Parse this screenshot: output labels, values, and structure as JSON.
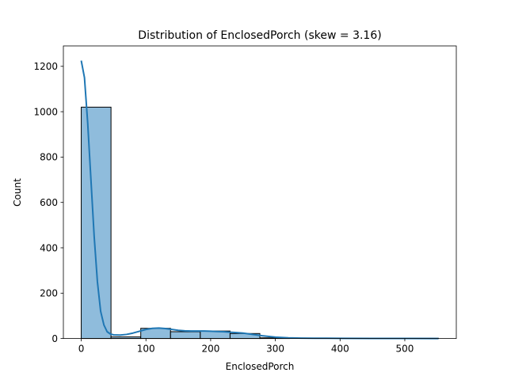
{
  "chart_data": {
    "type": "bar",
    "title": "Distribution of EnclosedPorch (skew = 3.16)",
    "xlabel": "EnclosedPorch",
    "ylabel": "Count",
    "xlim": [
      -27.6,
      579.6
    ],
    "ylim": [
      0,
      1290
    ],
    "xticks": [
      0,
      100,
      200,
      300,
      400,
      500
    ],
    "yticks": [
      0,
      200,
      400,
      600,
      800,
      1000,
      1200
    ],
    "grid": false,
    "legend": "none",
    "bar_color": "#8fbcdc",
    "edge_color": "#000000",
    "kde_color": "#1f77b4",
    "bins": [
      {
        "x0": 0,
        "x1": 46,
        "count": 1020
      },
      {
        "x0": 46,
        "x1": 92,
        "count": 7
      },
      {
        "x0": 92,
        "x1": 138,
        "count": 45
      },
      {
        "x0": 138,
        "x1": 184,
        "count": 30
      },
      {
        "x0": 184,
        "x1": 230,
        "count": 33
      },
      {
        "x0": 230,
        "x1": 276,
        "count": 22
      },
      {
        "x0": 276,
        "x1": 322,
        "count": 3
      },
      {
        "x0": 322,
        "x1": 368,
        "count": 0
      },
      {
        "x0": 368,
        "x1": 414,
        "count": 0
      },
      {
        "x0": 414,
        "x1": 460,
        "count": 0
      },
      {
        "x0": 460,
        "x1": 506,
        "count": 0
      },
      {
        "x0": 506,
        "x1": 552,
        "count": 1
      }
    ],
    "kde": {
      "x": [
        0,
        5,
        10,
        15,
        20,
        25,
        30,
        35,
        40,
        45,
        50,
        60,
        70,
        80,
        90,
        100,
        110,
        120,
        130,
        140,
        150,
        160,
        170,
        180,
        190,
        200,
        210,
        220,
        230,
        240,
        250,
        260,
        270,
        280,
        290,
        300,
        320,
        340,
        360,
        380,
        400,
        450,
        500,
        552
      ],
      "y": [
        1225,
        1150,
        950,
        700,
        450,
        250,
        120,
        60,
        30,
        20,
        16,
        15,
        18,
        24,
        32,
        40,
        45,
        46,
        44,
        40,
        36,
        34,
        33,
        33,
        33,
        32,
        31,
        30,
        28,
        26,
        24,
        20,
        16,
        12,
        9,
        6,
        3,
        1.5,
        1,
        1,
        0.6,
        0.3,
        0.2,
        0.1
      ]
    }
  }
}
